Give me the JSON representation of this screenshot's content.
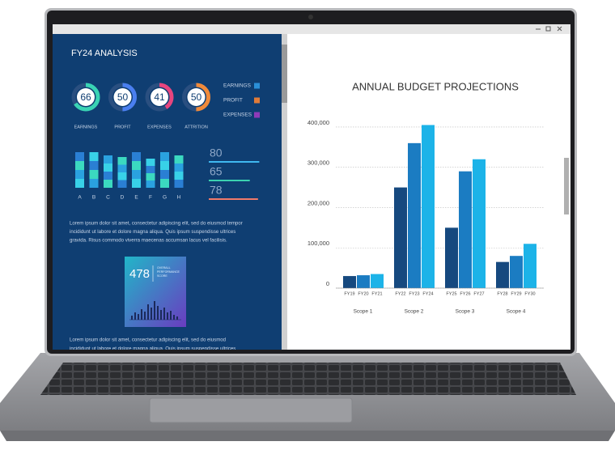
{
  "dashboard": {
    "title": "FY24 ANALYSIS",
    "gauges": [
      {
        "value": 66,
        "label": "EARNINGS",
        "color": "#39d3b4"
      },
      {
        "value": 50,
        "label": "PROFIT",
        "color": "#4a7ff0"
      },
      {
        "value": 41,
        "label": "EXPENSES",
        "color": "#e8457e"
      },
      {
        "value": 50,
        "label": "ATTRITION",
        "color": "#f08a3a"
      }
    ],
    "legend": [
      {
        "label": "EARNINGS",
        "color": "#2a8fd8"
      },
      {
        "label": "PROFIT",
        "color": "#e07b39"
      },
      {
        "label": "EXPENSES",
        "color": "#8e3ab8"
      }
    ],
    "bars": {
      "categories": [
        "A",
        "B",
        "C",
        "D",
        "E",
        "F",
        "G",
        "H"
      ],
      "values": [
        44,
        44,
        40,
        38,
        44,
        36,
        44,
        40
      ]
    },
    "progress": [
      {
        "value": 80,
        "color": "#3fb8f0"
      },
      {
        "value": 65,
        "color": "#3bd1b0"
      },
      {
        "value": 78,
        "color": "#f07a6a"
      }
    ],
    "paragraph_1": [
      "Lorem ipsum dolor sit amet, consectetur adipiscing elit, sed do eiusmod tempor",
      "incididunt ut labore et dolore magna aliqua. Quis ipsum suspendisse ultrices",
      "gravida. Risus commodo viverra maecenas accumsan lacus vel facilisis."
    ],
    "score": {
      "value": 478,
      "label": [
        "OVERALL",
        "PERFORMANCE",
        "SCORE"
      ]
    },
    "paragraph_2": [
      "Lorem ipsum dolor sit amet, consectetur adipiscing elit, sed do eiusmod",
      "incididunt ut labore et dolore magna aliqua. Quis ipsum suspendisse ultrices"
    ]
  },
  "chart_data": {
    "type": "bar",
    "title": "ANNUAL BUDGET PROJECTIONS",
    "categories": [
      "Scope 1",
      "Scope 2",
      "Scope 3",
      "Scope 4"
    ],
    "series": [
      {
        "color": "#16497f",
        "labels": [
          "FY19",
          "FY22",
          "FY25",
          "FY28"
        ],
        "values": [
          30000,
          250000,
          150000,
          65000
        ]
      },
      {
        "color": "#1b7cc2",
        "labels": [
          "FY20",
          "FY23",
          "FY26",
          "FY29"
        ],
        "values": [
          32000,
          360000,
          290000,
          80000
        ]
      },
      {
        "color": "#1cb3e8",
        "labels": [
          "FY21",
          "FY24",
          "FY27",
          "FY30"
        ],
        "values": [
          35000,
          405000,
          320000,
          110000
        ]
      }
    ],
    "ylim": [
      0,
      420000
    ],
    "yticks": [
      0,
      {
        "value": 100000,
        "label": "100,000"
      },
      {
        "value": 200000,
        "label": "200,000"
      },
      {
        "value": 300000,
        "label": "300,000"
      },
      {
        "value": 400000,
        "label": "400,000"
      }
    ],
    "grid": true
  }
}
